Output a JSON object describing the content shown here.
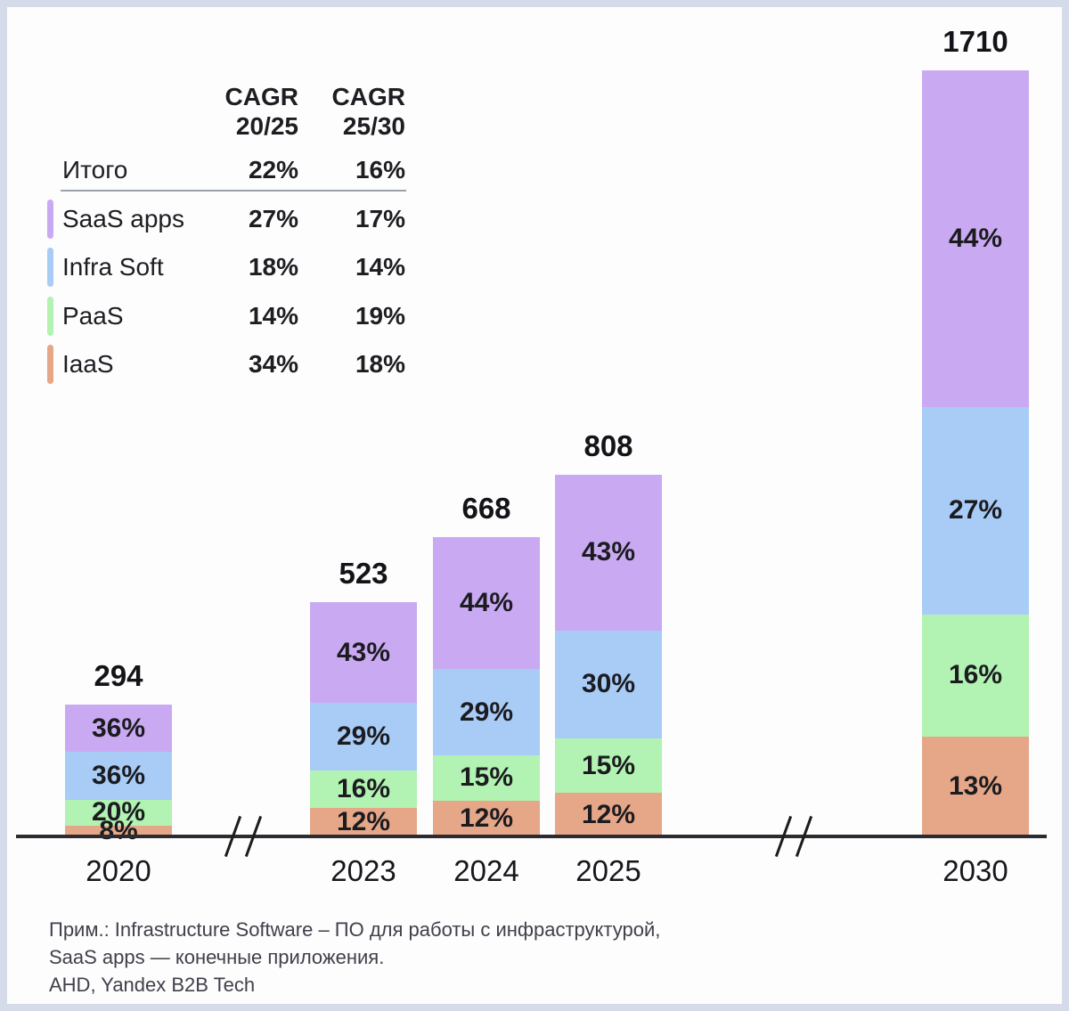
{
  "colors": {
    "saas_purple": "#c9aaf2",
    "infra_blue": "#a8ccf6",
    "paas_green": "#b2f2b2",
    "iaas_orange": "#e5a788",
    "frame": "#d6dbe9",
    "axis": "#2b2b30",
    "divider": "#9aa0ac"
  },
  "cagr_table": {
    "headers": [
      {
        "line1": "CAGR",
        "line2": "20/25"
      },
      {
        "line1": "CAGR",
        "line2": "25/30"
      }
    ],
    "rows": [
      {
        "label": "Итого",
        "cagr_20_25": "22%",
        "cagr_25_30": "16%"
      },
      {
        "label": "SaaS apps",
        "cagr_20_25": "27%",
        "cagr_25_30": "17%"
      },
      {
        "label": "Infra Soft",
        "cagr_20_25": "18%",
        "cagr_25_30": "14%"
      },
      {
        "label": "PaaS",
        "cagr_20_25": "14%",
        "cagr_25_30": "19%"
      },
      {
        "label": "IaaS",
        "cagr_20_25": "34%",
        "cagr_25_30": "18%"
      }
    ]
  },
  "chart_data": {
    "type": "bar",
    "stacked": true,
    "categories": [
      "2020",
      "2023",
      "2024",
      "2025",
      "2030"
    ],
    "totals": [
      294,
      523,
      668,
      808,
      1710
    ],
    "series": [
      {
        "key": "saas-apps",
        "name": "SaaS apps",
        "color": "#c9aaf2",
        "pct": [
          36,
          43,
          44,
          43,
          44
        ]
      },
      {
        "key": "infra-soft",
        "name": "Infra Soft",
        "color": "#a8ccf6",
        "pct": [
          36,
          29,
          29,
          30,
          27
        ]
      },
      {
        "key": "paas",
        "name": "PaaS",
        "color": "#b2f2b2",
        "pct": [
          20,
          16,
          15,
          15,
          16
        ]
      },
      {
        "key": "iaas",
        "name": "IaaS",
        "color": "#e5a788",
        "pct": [
          8,
          12,
          12,
          12,
          13
        ]
      }
    ],
    "title": "",
    "xlabel": "",
    "ylabel": "",
    "ylim": [
      0,
      1710
    ],
    "grid": false,
    "legend_position": "top-left table with CAGR columns",
    "axis_breaks_between": [
      [
        "2020",
        "2023"
      ],
      [
        "2025",
        "2030"
      ]
    ]
  },
  "footer": {
    "lines": [
      "Прим.: Infrastructure Software – ПО для работы с инфраструктурой,",
      "SaaS apps — конечные приложения.",
      "AHD, Yandex B2B Tech"
    ]
  }
}
